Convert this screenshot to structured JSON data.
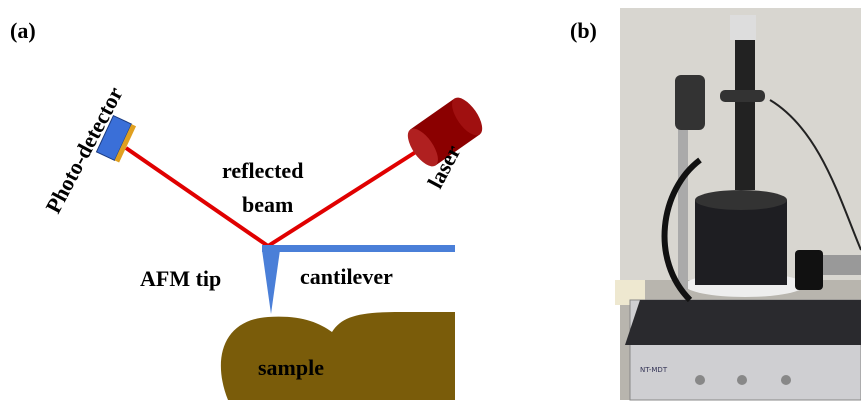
{
  "panels": {
    "a": {
      "label": "(a)",
      "labels": {
        "detector": "Photo-detector",
        "laser": "laser",
        "reflected": "reflected",
        "beam": "beam",
        "tip": "AFM tip",
        "cantilever": "cantilever",
        "sample": "sample"
      }
    },
    "b": {
      "label": "(b)",
      "brand": "NT-MDT"
    }
  }
}
